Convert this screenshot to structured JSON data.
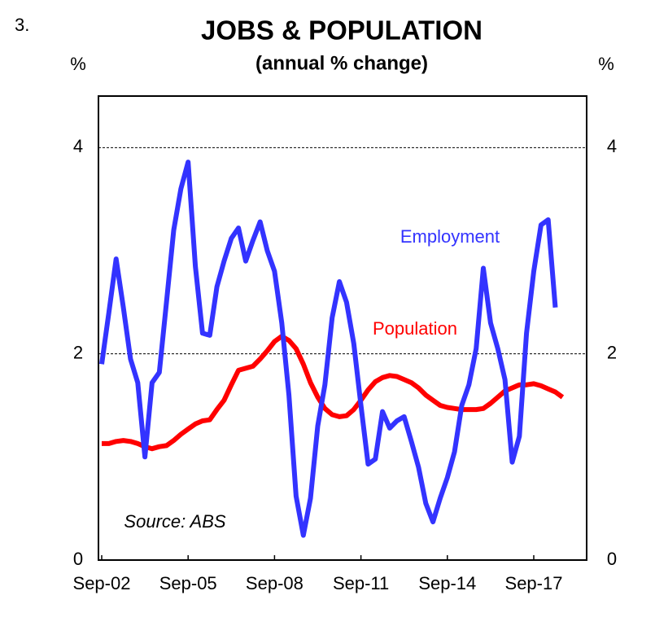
{
  "chart_data": {
    "type": "line",
    "figure_number": "3.",
    "title": "JOBS & POPULATION",
    "subtitle": "(annual % change)",
    "y_label": "%",
    "y2_label": "%",
    "source": "Source: ABS",
    "categories": [
      "Sep-02",
      null,
      null,
      null,
      null,
      null,
      null,
      null,
      null,
      null,
      null,
      null,
      "Sep-05",
      null,
      null,
      null,
      null,
      null,
      null,
      null,
      null,
      null,
      null,
      null,
      "Sep-08",
      null,
      null,
      null,
      null,
      null,
      null,
      null,
      null,
      null,
      null,
      null,
      "Sep-11",
      null,
      null,
      null,
      null,
      null,
      null,
      null,
      null,
      null,
      null,
      null,
      "Sep-14",
      null,
      null,
      null,
      null,
      null,
      null,
      null,
      null,
      null,
      null,
      null,
      "Sep-17",
      null,
      null,
      null,
      null
    ],
    "series": [
      {
        "name": "Employment",
        "color": "#3333ff",
        "values": [
          1.9,
          2.4,
          2.92,
          2.45,
          1.95,
          1.72,
          1.0,
          1.72,
          1.82,
          2.5,
          3.2,
          3.6,
          3.86,
          2.85,
          2.2,
          2.18,
          2.65,
          2.9,
          3.12,
          3.22,
          2.9,
          3.1,
          3.28,
          3.0,
          2.8,
          2.3,
          1.6,
          0.62,
          0.24,
          0.6,
          1.3,
          1.7,
          2.35,
          2.7,
          2.5,
          2.1,
          1.5,
          0.93,
          0.98,
          1.44,
          1.28,
          1.35,
          1.39,
          1.15,
          0.9,
          0.55,
          0.37,
          0.6,
          0.8,
          1.05,
          1.5,
          1.7,
          2.05,
          2.83,
          2.3,
          2.05,
          1.75,
          0.95,
          1.2,
          2.2,
          2.8,
          3.25,
          3.3,
          2.45,
          null
        ]
      },
      {
        "name": "Population",
        "color": "#ff0000",
        "values": [
          1.13,
          1.13,
          1.15,
          1.16,
          1.15,
          1.13,
          1.1,
          1.08,
          1.1,
          1.11,
          1.16,
          1.22,
          1.27,
          1.32,
          1.35,
          1.36,
          1.46,
          1.55,
          1.7,
          1.84,
          1.86,
          1.88,
          1.95,
          2.03,
          2.12,
          2.17,
          2.13,
          2.05,
          1.9,
          1.72,
          1.58,
          1.47,
          1.41,
          1.39,
          1.4,
          1.46,
          1.55,
          1.65,
          1.73,
          1.77,
          1.79,
          1.78,
          1.75,
          1.72,
          1.67,
          1.6,
          1.55,
          1.5,
          1.48,
          1.47,
          1.46,
          1.46,
          1.46,
          1.47,
          1.52,
          1.58,
          1.64,
          1.67,
          1.7,
          1.7,
          1.71,
          1.69,
          1.66,
          1.63,
          1.58
        ]
      }
    ],
    "ylim": [
      0,
      4.5
    ],
    "yticks": [
      0,
      2,
      4
    ],
    "y2lim": [
      0,
      4.5
    ],
    "y2ticks": [
      0,
      2,
      4
    ],
    "grid": true
  }
}
